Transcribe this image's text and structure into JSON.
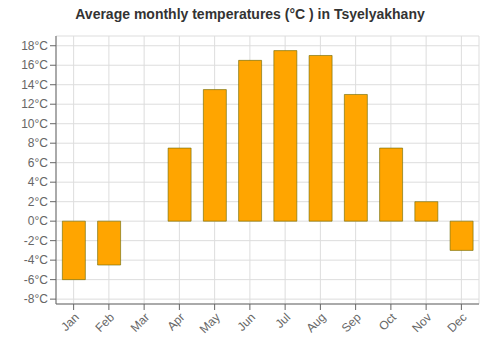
{
  "chart_data": {
    "type": "bar",
    "title": "Average monthly temperatures (°C ) in Tsyelyakhany",
    "categories": [
      "Jan",
      "Feb",
      "Mar",
      "Apr",
      "May",
      "Jun",
      "Jul",
      "Aug",
      "Sep",
      "Oct",
      "Nov",
      "Dec"
    ],
    "values": [
      -6,
      -4.5,
      0,
      7.5,
      13.5,
      16.5,
      17.5,
      17,
      13,
      7.5,
      2,
      -3
    ],
    "color": "#FFA500",
    "ylim": [
      -8.5,
      19
    ],
    "yticks": [
      {
        "value": -8,
        "label": "-8°C"
      },
      {
        "value": -6,
        "label": "-6°C"
      },
      {
        "value": -4,
        "label": "-4°C"
      },
      {
        "value": -2,
        "label": "-2°C"
      },
      {
        "value": 0,
        "label": "0°C"
      },
      {
        "value": 2,
        "label": "2°C"
      },
      {
        "value": 4,
        "label": "4°C"
      },
      {
        "value": 6,
        "label": "6°C"
      },
      {
        "value": 8,
        "label": "8°C"
      },
      {
        "value": 10,
        "label": "10°C"
      },
      {
        "value": 12,
        "label": "12°C"
      },
      {
        "value": 14,
        "label": "14°C"
      },
      {
        "value": 16,
        "label": "16°C"
      },
      {
        "value": 18,
        "label": "18°C"
      }
    ],
    "grid": true
  }
}
